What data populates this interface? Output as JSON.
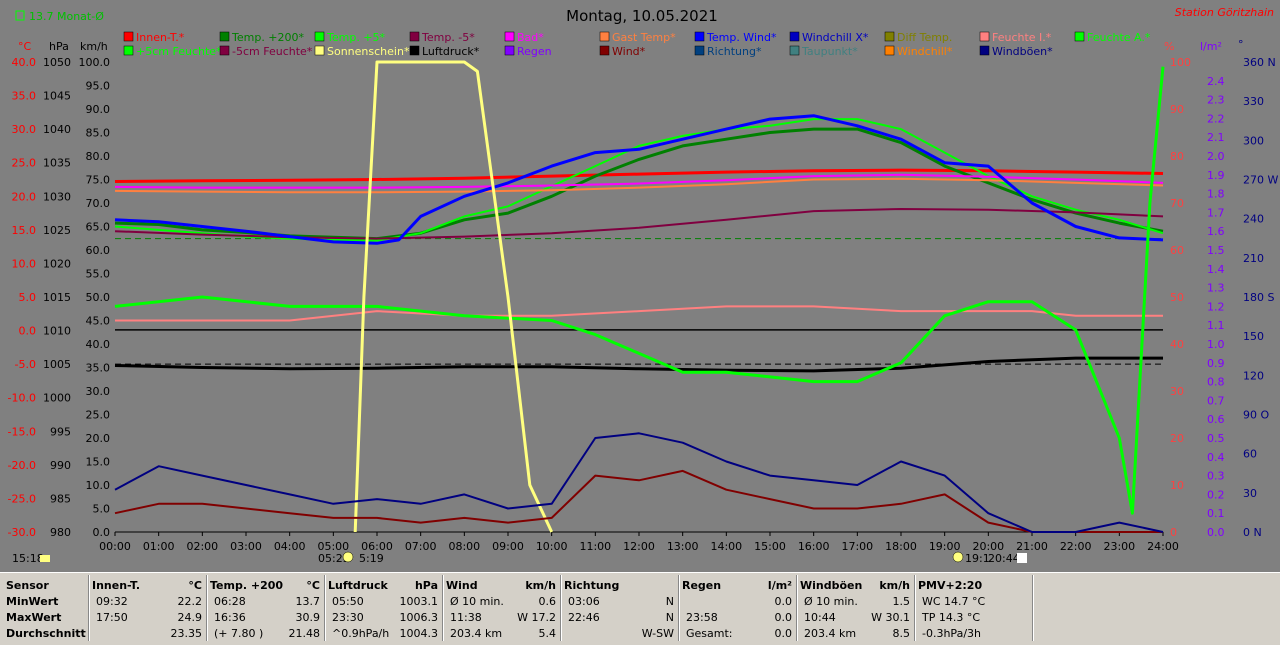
{
  "header": {
    "title": "Montag, 10.05.2021",
    "station": "Station Göritzhain",
    "avg_label": "13.7 Monat-Ø"
  },
  "legend_row1": [
    {
      "label": "Innen-T.*",
      "color": "#ff0000"
    },
    {
      "label": "Temp. +200*",
      "color": "#008000"
    },
    {
      "label": "Temp. +5*",
      "color": "#00ff00"
    },
    {
      "label": "Temp. -5*",
      "color": "#800040"
    },
    {
      "label": "Bad*",
      "color": "#ff00ff"
    },
    {
      "label": "Gast Temp*",
      "color": "#ff8040"
    },
    {
      "label": "Temp. Wind*",
      "color": "#0000ff"
    },
    {
      "label": "Windchill X*",
      "color": "#0000c0"
    },
    {
      "label": "Diff Temp.",
      "color": "#808000"
    },
    {
      "label": "Feuchte I.*",
      "color": "#ff8080"
    },
    {
      "label": "Feuchte A.*",
      "color": "#00ff00"
    }
  ],
  "legend_row2": [
    {
      "label": "+5cm Feuchte*",
      "color": "#00ff00"
    },
    {
      "label": "-5cm Feuchte*",
      "color": "#800040"
    },
    {
      "label": "Sonnenschein*",
      "color": "#ffff80"
    },
    {
      "label": "Luftdruck*",
      "color": "#000000"
    },
    {
      "label": "Regen",
      "color": "#8000ff"
    },
    {
      "label": "Wind*",
      "color": "#800000"
    },
    {
      "label": "Richtung*",
      "color": "#004080"
    },
    {
      "label": "Taupunkt*",
      "color": "#408080"
    },
    {
      "label": "Windchill*",
      "color": "#ff8000"
    },
    {
      "label": "Windböen*",
      "color": "#000080"
    }
  ],
  "axes": {
    "units": [
      "°C",
      "hPa",
      "km/h",
      "%",
      "l/m²",
      "°"
    ],
    "temp_ticks": [
      "40.0",
      "35.0",
      "30.0",
      "25.0",
      "20.0",
      "15.0",
      "10.0",
      "5.0",
      "0.0",
      "-5.0",
      "-10.0",
      "-15.0",
      "-20.0",
      "-25.0",
      "-30.0"
    ],
    "hpa_ticks": [
      "1050",
      "1045",
      "1040",
      "1035",
      "1030",
      "1025",
      "1020",
      "1015",
      "1010",
      "1005",
      "1000",
      "995",
      "990",
      "985",
      "980"
    ],
    "kmh_ticks": [
      "100.0",
      "95.0",
      "90.0",
      "85.0",
      "80.0",
      "75.0",
      "70.0",
      "65.0",
      "60.0",
      "55.0",
      "50.0",
      "45.0",
      "40.0",
      "35.0",
      "30.0",
      "25.0",
      "20.0",
      "15.0",
      "10.0",
      "5.0",
      "0.0"
    ],
    "pct_ticks": [
      "100",
      "90",
      "80",
      "70",
      "60",
      "50",
      "40",
      "30",
      "20",
      "10",
      "0"
    ],
    "rain_ticks": [
      "2.4",
      "2.3",
      "2.2",
      "2.1",
      "2.0",
      "1.9",
      "1.8",
      "1.7",
      "1.6",
      "1.5",
      "1.4",
      "1.3",
      "1.2",
      "1.1",
      "1.0",
      "0.9",
      "0.8",
      "0.7",
      "0.6",
      "0.5",
      "0.4",
      "0.3",
      "0.2",
      "0.1",
      "0.0"
    ],
    "dir_ticks": [
      "360 N",
      "330",
      "300",
      "270 W",
      "240",
      "210",
      "180 S",
      "150",
      "120",
      "90 O",
      "60",
      "30",
      "0 N"
    ],
    "time_ticks": [
      "00:00",
      "01:00",
      "02:00",
      "03:00",
      "04:00",
      "05:00",
      "06:00",
      "07:00",
      "08:00",
      "09:00",
      "10:00",
      "11:00",
      "12:00",
      "13:00",
      "14:00",
      "15:00",
      "16:00",
      "17:00",
      "18:00",
      "19:00",
      "20:00",
      "21:00",
      "22:00",
      "23:00",
      "24:00"
    ]
  },
  "footer_markers": {
    "left_time": "15:18",
    "sunrise": "05:25",
    "sunrise2": "5:19",
    "sunset": "19:1",
    "sunset2": "20:44"
  },
  "chart_data": {
    "type": "line",
    "x_unit": "hour",
    "xlim": [
      0,
      24
    ],
    "left_axis_kmh_ylim": [
      0,
      100
    ],
    "temp_ylim": [
      -30,
      40
    ],
    "pressure_ylim": [
      980,
      1050
    ],
    "humidity_ylim": [
      0,
      100
    ],
    "rain_ylim": [
      0,
      2.5
    ],
    "direction_ylim": [
      0,
      360
    ],
    "grid": false,
    "series": [
      {
        "name": "Innen-T.*",
        "color": "#ff0000",
        "axis": "temp",
        "x": [
          0,
          2,
          4,
          6,
          8,
          10,
          12,
          14,
          16,
          18,
          20,
          22,
          24
        ],
        "y": [
          22.2,
          22.3,
          22.4,
          22.5,
          22.7,
          23.0,
          23.3,
          23.6,
          23.8,
          23.9,
          23.8,
          23.6,
          23.4
        ]
      },
      {
        "name": "Temp. +200*",
        "color": "#008000",
        "axis": "temp",
        "x": [
          0,
          1,
          2,
          3,
          4,
          5,
          6,
          7,
          8,
          9,
          10,
          11,
          12,
          13,
          14,
          15,
          16,
          17,
          18,
          19,
          20,
          21,
          22,
          23,
          24
        ],
        "y": [
          16.0,
          15.8,
          15.0,
          14.6,
          14.1,
          13.9,
          13.7,
          14.5,
          16.5,
          17.5,
          20.0,
          23.0,
          25.5,
          27.5,
          28.5,
          29.5,
          30.0,
          30.0,
          28.0,
          24.5,
          22.0,
          19.5,
          17.5,
          16.0,
          14.8
        ]
      },
      {
        "name": "Temp. +5*",
        "color": "#00ff00",
        "axis": "temp",
        "x": [
          0,
          1,
          2,
          3,
          4,
          5,
          6,
          7,
          8,
          9,
          10,
          11,
          12,
          13,
          14,
          15,
          16,
          17,
          18,
          19,
          20,
          21,
          22,
          23,
          24
        ],
        "y": [
          15.5,
          15.0,
          14.5,
          14.0,
          13.7,
          13.5,
          13.4,
          14.5,
          17.0,
          18.5,
          21.5,
          24.5,
          27.5,
          29.0,
          30.0,
          30.5,
          31.5,
          31.5,
          30.0,
          26.5,
          23.0,
          20.0,
          18.0,
          16.5,
          14.5
        ]
      },
      {
        "name": "Temp. -5*",
        "color": "#800040",
        "axis": "temp",
        "x": [
          0,
          2,
          4,
          6,
          8,
          10,
          12,
          14,
          16,
          18,
          20,
          22,
          24
        ],
        "y": [
          14.8,
          14.3,
          13.9,
          13.7,
          14.0,
          14.5,
          15.3,
          16.5,
          17.8,
          18.1,
          18.0,
          17.6,
          17.0
        ]
      },
      {
        "name": "Bad*",
        "color": "#ff00ff",
        "axis": "temp",
        "x": [
          0,
          2,
          4,
          6,
          8,
          10,
          12,
          14,
          16,
          18,
          20,
          22,
          24
        ],
        "y": [
          21.4,
          21.3,
          21.3,
          21.3,
          21.4,
          21.6,
          21.9,
          22.4,
          23.0,
          23.2,
          22.9,
          22.5,
          22.0
        ]
      },
      {
        "name": "Gast Temp*",
        "color": "#ff8040",
        "axis": "temp",
        "x": [
          0,
          2,
          4,
          6,
          8,
          10,
          12,
          14,
          16,
          18,
          20,
          22,
          24
        ],
        "y": [
          20.8,
          20.7,
          20.6,
          20.6,
          20.7,
          20.9,
          21.3,
          21.8,
          22.5,
          22.6,
          22.4,
          22.0,
          21.6
        ]
      },
      {
        "name": "Temp. Wind*",
        "color": "#0000ff",
        "axis": "temp",
        "x": [
          0,
          1,
          2,
          3,
          4,
          5,
          6,
          6.5,
          7,
          8,
          9,
          10,
          11,
          12,
          13,
          14,
          15,
          16,
          17,
          18,
          19,
          20,
          21,
          22,
          23,
          24
        ],
        "y": [
          16.5,
          16.2,
          15.5,
          14.8,
          14.0,
          13.2,
          13.0,
          13.5,
          17.0,
          20.0,
          22.0,
          24.5,
          26.5,
          27.0,
          28.5,
          30.0,
          31.5,
          32.0,
          30.5,
          28.5,
          25.0,
          24.5,
          19.0,
          15.5,
          13.8,
          13.5
        ]
      },
      {
        "name": "Luftdruck*",
        "color": "#000000",
        "axis": "pressure",
        "x": [
          0,
          2,
          4,
          6,
          8,
          10,
          12,
          14,
          16,
          18,
          20,
          22,
          24
        ],
        "y": [
          1004.8,
          1004.5,
          1004.3,
          1004.4,
          1004.6,
          1004.6,
          1004.3,
          1004.1,
          1004.0,
          1004.4,
          1005.4,
          1005.9,
          1005.9
        ]
      },
      {
        "name": "Feuchte I.*",
        "color": "#ff8080",
        "axis": "humidity",
        "x": [
          0,
          2,
          4,
          6,
          8,
          10,
          12,
          14,
          16,
          18,
          20,
          21,
          22,
          24
        ],
        "y": [
          45,
          45,
          45,
          47,
          46,
          46,
          47,
          48,
          48,
          47,
          47,
          47,
          46,
          46
        ]
      },
      {
        "name": "Feuchte A.*",
        "color": "#00ff00",
        "axis": "humidity",
        "x": [
          0,
          2,
          4,
          6,
          8,
          10,
          11,
          12,
          13,
          14,
          15,
          16,
          17,
          18,
          19,
          20,
          21,
          22,
          23,
          23.3,
          23.7,
          24
        ],
        "y": [
          48,
          50,
          48,
          48,
          46,
          45,
          42,
          38,
          34,
          34,
          33,
          32,
          32,
          36,
          46,
          49,
          49,
          43,
          20,
          4,
          70,
          99
        ]
      },
      {
        "name": "Sonnenschein*",
        "color": "#ffff80",
        "axis": "kmh",
        "x": [
          5.5,
          5.7,
          6.0,
          7.0,
          8.0,
          8.3,
          9.0,
          9.5,
          10.0
        ],
        "y": [
          0,
          50,
          100,
          100,
          100,
          98,
          50,
          10,
          0
        ]
      },
      {
        "name": "Wind*",
        "color": "#800000",
        "axis": "kmh",
        "x": [
          0,
          1,
          2,
          3,
          4,
          5,
          6,
          7,
          8,
          9,
          10,
          11,
          12,
          13,
          14,
          15,
          16,
          17,
          18,
          19,
          20,
          21,
          22,
          23,
          24
        ],
        "y": [
          4,
          6,
          6,
          5,
          4,
          3,
          3,
          2,
          3,
          2,
          3,
          12,
          11,
          13,
          9,
          7,
          5,
          5,
          6,
          8,
          2,
          0,
          0,
          0,
          0
        ]
      },
      {
        "name": "Windböen*",
        "color": "#000080",
        "axis": "kmh",
        "x": [
          0,
          1,
          2,
          3,
          4,
          5,
          6,
          7,
          8,
          9,
          10,
          11,
          12,
          13,
          14,
          15,
          16,
          17,
          18,
          19,
          20,
          21,
          22,
          23,
          24
        ],
        "y": [
          9,
          14,
          12,
          10,
          8,
          6,
          7,
          6,
          8,
          5,
          6,
          20,
          21,
          19,
          15,
          12,
          11,
          10,
          15,
          12,
          4,
          0,
          0,
          2,
          0
        ]
      }
    ]
  },
  "stats": {
    "sensor": {
      "title": "Sensor",
      "rows": [
        "MinWert",
        "MaxWert",
        "Durchschnitt"
      ]
    },
    "innen": {
      "title": "Innen-T.",
      "unit": "°C",
      "rows": [
        [
          "09:32",
          "22.2"
        ],
        [
          "17:50",
          "24.9"
        ],
        [
          "",
          "23.35"
        ]
      ]
    },
    "temp200": {
      "title": "Temp. +200",
      "unit": "°C",
      "rows": [
        [
          "06:28",
          "13.7"
        ],
        [
          "16:36",
          "30.9"
        ],
        [
          "(+ 7.80 )",
          "21.48"
        ]
      ]
    },
    "luftdruck": {
      "title": "Luftdruck",
      "unit": "hPa",
      "rows": [
        [
          "05:50",
          "1003.1"
        ],
        [
          "23:30",
          "1006.3"
        ],
        [
          "^0.9hPa/h",
          "1004.3"
        ]
      ]
    },
    "wind": {
      "title": "Wind",
      "unit": "km/h",
      "rows": [
        [
          "Ø 10 min.",
          "0.6"
        ],
        [
          "11:38",
          "W 17.2"
        ],
        [
          "203.4 km",
          "5.4"
        ]
      ]
    },
    "richtung": {
      "title": "Richtung",
      "unit": "",
      "rows": [
        [
          "03:06",
          "N"
        ],
        [
          "22:46",
          "N"
        ],
        [
          "",
          "W-SW"
        ]
      ]
    },
    "regen": {
      "title": "Regen",
      "unit": "l/m²",
      "rows": [
        [
          "",
          "0.0"
        ],
        [
          "23:58",
          "0.0"
        ],
        [
          "Gesamt:",
          "0.0"
        ]
      ]
    },
    "windboen": {
      "title": "Windböen",
      "unit": "km/h",
      "rows": [
        [
          "Ø 10 min.",
          "1.5"
        ],
        [
          "10:44",
          "W 30.1"
        ],
        [
          "203.4 km",
          "8.5"
        ]
      ]
    },
    "pmv": {
      "title": "PMV+2:20",
      "unit": "",
      "rows": [
        [
          "WC 14.7 °C",
          ""
        ],
        [
          "TP 14.3 °C",
          ""
        ],
        [
          "-0.3hPa/3h",
          ""
        ]
      ]
    }
  }
}
